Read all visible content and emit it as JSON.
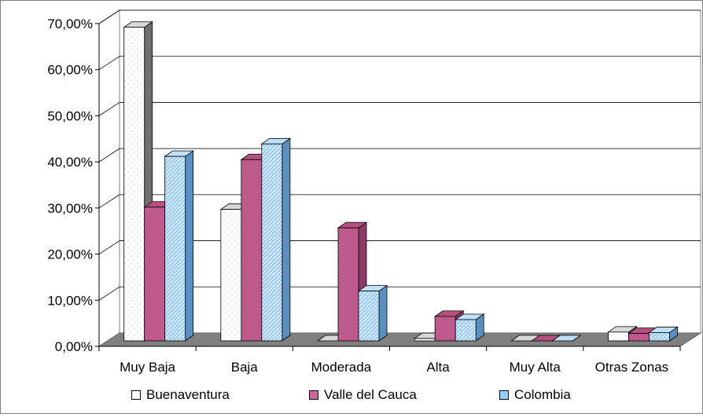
{
  "chart_data": {
    "type": "bar",
    "categories": [
      "Muy Baja",
      "Baja",
      "Moderada",
      "Alta",
      "Muy Alta",
      "Otras Zonas"
    ],
    "series": [
      {
        "name": "Buenaventura",
        "values": [
          68.0,
          28.5,
          0.0,
          0.5,
          0.0,
          1.9
        ],
        "color": "#ffffff"
      },
      {
        "name": "Valle del Cauca",
        "values": [
          29.0,
          39.3,
          24.5,
          5.3,
          0.0,
          1.6
        ],
        "color": "#cc6699"
      },
      {
        "name": "Colombia",
        "values": [
          40.0,
          42.7,
          10.8,
          4.6,
          0.0,
          1.8
        ],
        "color": "#99ccff"
      }
    ],
    "y_ticks": [
      "0,00%",
      "10,00%",
      "20,00%",
      "30,00%",
      "40,00%",
      "50,00%",
      "60,00%",
      "70,00%"
    ],
    "ylim": [
      0,
      70
    ],
    "grid": true,
    "legend_position": "bottom"
  }
}
